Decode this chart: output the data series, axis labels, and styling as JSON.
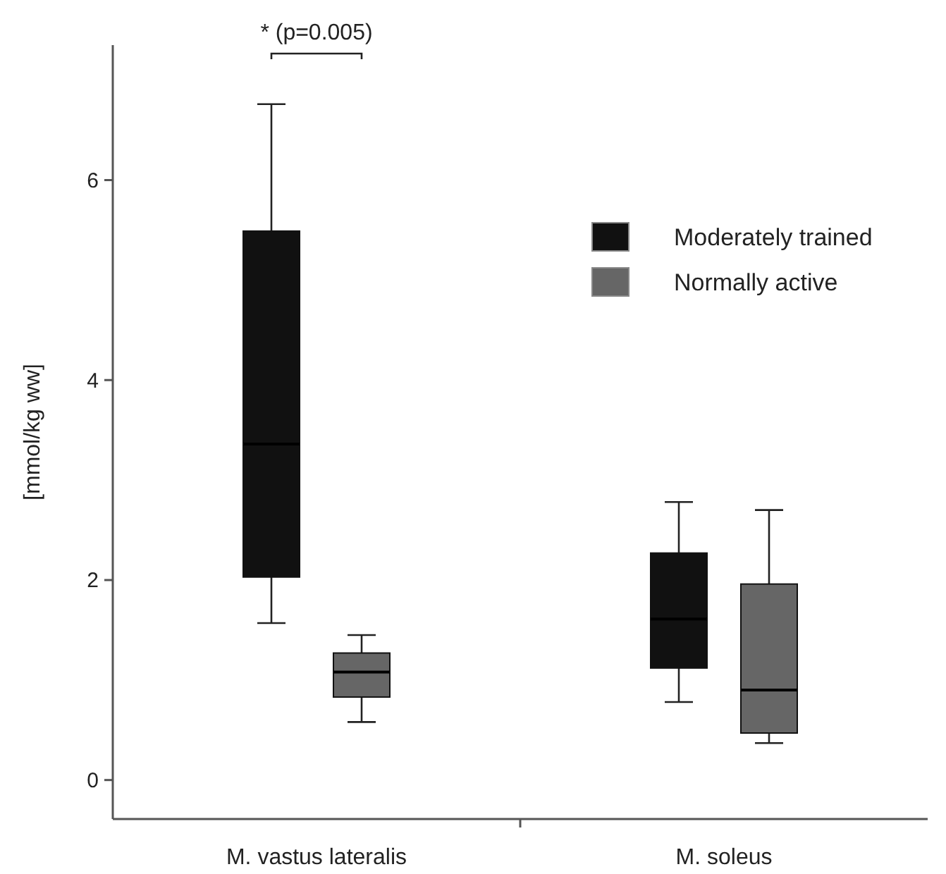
{
  "chart_data": {
    "type": "box",
    "ylabel": "[mmol/kg ww]",
    "categories": [
      "M. vastus lateralis",
      "M. soleus"
    ],
    "ylim": [
      -0.39,
      7.35
    ],
    "yticks": [
      0,
      2,
      4,
      6
    ],
    "legend": "top right",
    "grid": false,
    "series": [
      {
        "name": "Moderately trained",
        "color": "#111111",
        "boxes": [
          {
            "low": 1.57,
            "q1": 2.03,
            "median": 3.36,
            "q3": 5.49,
            "high": 6.76
          },
          {
            "low": 0.78,
            "q1": 1.12,
            "median": 1.61,
            "q3": 2.27,
            "high": 2.78
          }
        ]
      },
      {
        "name": "Normally active",
        "color": "#666666",
        "boxes": [
          {
            "low": 0.58,
            "q1": 0.83,
            "median": 1.08,
            "q3": 1.27,
            "high": 1.45
          },
          {
            "low": 0.37,
            "q1": 0.47,
            "median": 0.9,
            "q3": 1.96,
            "high": 2.7
          }
        ]
      }
    ],
    "annotations": [
      "* (p=0.005)"
    ]
  }
}
